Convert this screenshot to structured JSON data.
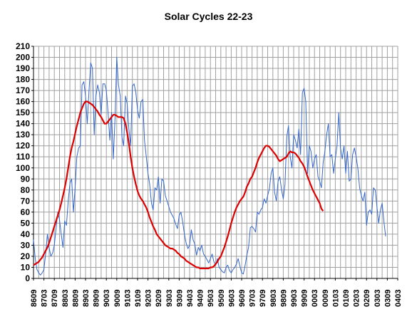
{
  "chart_data": {
    "type": "line",
    "title": "Solar Cycles 22-23",
    "xlabel": "",
    "ylabel": "",
    "ylim": [
      0,
      210
    ],
    "y_ticks": [
      0,
      10,
      20,
      30,
      40,
      50,
      60,
      70,
      80,
      90,
      100,
      110,
      120,
      130,
      140,
      150,
      160,
      170,
      180,
      190,
      200,
      210
    ],
    "x_tick_labels": [
      "8609",
      "8703",
      "8709",
      "8803",
      "8809",
      "8903",
      "8909",
      "9003",
      "9009",
      "9103",
      "9109",
      "9203",
      "9209",
      "9303",
      "9309",
      "9403",
      "9409",
      "9503",
      "9509",
      "9603",
      "9609",
      "9703",
      "9709",
      "9803",
      "9809",
      "9903",
      "9909",
      "0003",
      "0009",
      "0103",
      "0109",
      "0203",
      "0209",
      "0303",
      "0309",
      "0403"
    ],
    "x_start": "1986-09",
    "x_end": "2004-03",
    "grid": true,
    "colors": {
      "monthly": "#3366cc",
      "smoothed": "#dd0000",
      "grid": "#a0a0a0",
      "axis": "#000000"
    },
    "series": [
      {
        "style": "thin",
        "values": [
          35,
          18,
          8,
          5,
          3,
          5,
          8,
          22,
          40,
          28,
          20,
          23,
          30,
          45,
          60,
          53,
          40,
          28,
          52,
          48,
          70,
          86,
          90,
          60,
          82,
          110,
          118,
          120,
          175,
          178,
          165,
          140,
          170,
          195,
          190,
          130,
          165,
          175,
          168,
          148,
          176,
          176,
          170,
          150,
          125,
          150,
          108,
          145,
          200,
          175,
          165,
          128,
          120,
          165,
          158,
          135,
          120,
          174,
          176,
          168,
          152,
          145,
          160,
          162,
          125,
          110,
          95,
          85,
          68,
          62,
          82,
          80,
          92,
          68,
          90,
          88,
          75,
          70,
          65,
          60,
          57,
          54,
          49,
          45,
          57,
          60,
          51,
          40,
          32,
          27,
          30,
          44,
          35,
          31,
          21,
          28,
          25,
          30,
          22,
          20,
          17,
          14,
          18,
          22,
          15,
          12,
          18,
          10,
          8,
          6,
          5,
          10,
          12,
          7,
          5,
          8,
          10,
          13,
          18,
          11,
          5,
          4,
          12,
          21,
          28,
          46,
          47,
          45,
          42,
          60,
          58,
          62,
          64,
          72,
          68,
          75,
          81,
          95,
          100,
          78,
          70,
          88,
          92,
          80,
          72,
          85,
          128,
          138,
          110,
          100,
          130,
          125,
          118,
          135,
          112,
          168,
          172,
          160,
          95,
          120,
          115,
          100,
          108,
          112,
          92,
          88,
          82,
          105,
          115,
          130,
          140,
          110,
          112,
          95,
          108,
          120,
          150,
          118,
          108,
          120,
          95,
          115,
          88,
          90,
          112,
          118,
          110,
          100,
          82,
          75,
          70,
          78,
          48,
          60,
          62,
          58,
          82,
          80,
          65,
          50,
          62,
          68,
          52,
          38
        ],
        "approximate": true
      },
      {
        "style": "thick",
        "values": [
          12,
          13,
          14,
          15,
          17,
          19,
          22,
          25,
          28,
          32,
          37,
          42,
          47,
          52,
          57,
          62,
          68,
          75,
          82,
          90,
          100,
          110,
          118,
          124,
          131,
          138,
          144,
          150,
          154,
          158,
          160,
          160,
          159,
          158,
          157,
          155,
          153,
          151,
          148,
          146,
          143,
          140,
          140,
          142,
          144,
          146,
          148,
          148,
          147,
          146,
          146,
          146,
          145,
          140,
          132,
          122,
          110,
          100,
          92,
          85,
          79,
          75,
          72,
          70,
          67,
          64,
          60,
          55,
          51,
          47,
          44,
          40,
          38,
          36,
          34,
          32,
          30,
          29,
          28,
          27,
          27,
          26,
          25,
          23,
          22,
          20,
          19,
          18,
          16,
          15,
          14,
          13,
          12,
          11,
          10,
          10,
          9,
          9,
          9,
          9,
          9,
          9,
          10,
          10,
          11,
          13,
          15,
          18,
          20,
          24,
          28,
          33,
          38,
          44,
          50,
          55,
          60,
          64,
          67,
          70,
          72,
          74,
          78,
          83,
          86,
          90,
          92,
          96,
          100,
          105,
          109,
          112,
          115,
          118,
          120,
          120,
          119,
          117,
          115,
          113,
          111,
          108,
          106,
          107,
          108,
          109,
          110,
          113,
          115,
          114,
          114,
          113,
          111,
          109,
          106,
          104,
          101,
          97,
          92,
          88,
          84,
          80,
          77,
          74,
          71,
          68,
          63,
          61
        ],
        "approximate": true
      }
    ]
  }
}
